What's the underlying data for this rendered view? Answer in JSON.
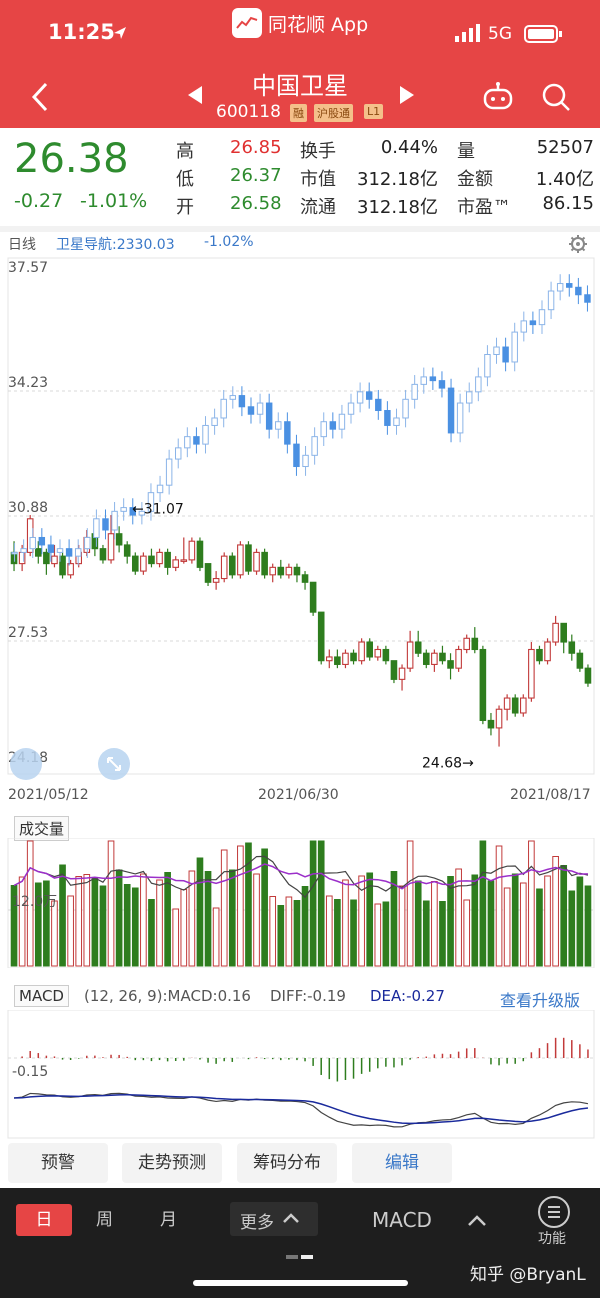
{
  "status_bar": {
    "time": "11:25",
    "app_label": "同花顺 App",
    "network": "5G"
  },
  "header": {
    "title": "中国卫星",
    "code": "600118",
    "badges": [
      "融",
      "沪股通",
      "L1"
    ]
  },
  "quote": {
    "price": "26.38",
    "change": "-0.27",
    "change_pct": "-1.01%",
    "stats": [
      {
        "label": "高",
        "value": "26.85",
        "color": "#e03030"
      },
      {
        "label": "换手",
        "value": "0.44%",
        "color": "#222"
      },
      {
        "label": "量",
        "value": "52507",
        "color": "#222"
      },
      {
        "label": "低",
        "value": "26.37",
        "color": "#2e8b2e"
      },
      {
        "label": "市值",
        "value": "312.18亿",
        "color": "#222"
      },
      {
        "label": "金额",
        "value": "1.40亿",
        "color": "#222"
      },
      {
        "label": "开",
        "value": "26.58",
        "color": "#2e8b2e"
      },
      {
        "label": "流通",
        "value": "312.18亿",
        "color": "#222"
      },
      {
        "label": "市盈™",
        "value": "86.15",
        "color": "#222"
      }
    ]
  },
  "chart_info": {
    "period": "日线",
    "index_label": "卫星导航:2330.03",
    "index_pct": "-1.02%"
  },
  "kline": {
    "y_ticks": [
      "37.57",
      "34.23",
      "30.88",
      "27.53",
      "24.18"
    ],
    "x_ticks": [
      "2021/05/12",
      "2021/06/30",
      "2021/08/17"
    ],
    "annotations": [
      "←31.07",
      "24.68→"
    ]
  },
  "volume": {
    "label": "成交量",
    "tick": "12.0万"
  },
  "macd": {
    "label": "MACD",
    "params": "(12, 26, 9):MACD:0.16",
    "diff": "DIFF:-0.19",
    "dea": "DEA:-0.27",
    "upgrade_link": "查看升级版",
    "tick": "-0.15"
  },
  "tool_buttons": [
    "预警",
    "走势预测",
    "筹码分布",
    "编辑"
  ],
  "bottom_nav": {
    "tabs": [
      "日",
      "周",
      "月",
      "更多"
    ],
    "indicator": "MACD",
    "func_label": "功能"
  },
  "watermark": "知乎 @BryanL",
  "colors": {
    "header": "#e64545",
    "up": "#c23a3a",
    "down": "#2e7d1e",
    "overlay": "#4a90e2"
  },
  "chart_data": {
    "type": "candlestick",
    "x_range": [
      "2021/05/12",
      "2021/08/17"
    ],
    "ylim": [
      24.18,
      37.57
    ],
    "series": [
      {
        "name": "中国卫星",
        "values": [
          [
            29.9,
            29.6,
            30.2,
            29.4
          ],
          [
            29.6,
            29.9,
            30.1,
            29.4
          ],
          [
            29.9,
            30.8,
            30.9,
            29.8
          ],
          [
            30.0,
            29.8,
            30.2,
            29.6
          ],
          [
            29.9,
            29.6,
            30.0,
            29.3
          ],
          [
            29.6,
            29.8,
            30.1,
            29.5
          ],
          [
            29.8,
            29.3,
            29.9,
            29.2
          ],
          [
            29.3,
            29.6,
            29.7,
            29.2
          ],
          [
            29.6,
            29.9,
            30.1,
            29.5
          ],
          [
            29.9,
            30.3,
            30.5,
            29.8
          ],
          [
            30.4,
            30.0,
            30.6,
            29.8
          ],
          [
            30.0,
            29.7,
            30.1,
            29.6
          ],
          [
            29.7,
            30.4,
            30.9,
            29.6
          ],
          [
            30.4,
            30.1,
            30.6,
            29.9
          ],
          [
            30.1,
            29.8,
            30.2,
            29.6
          ],
          [
            29.8,
            29.4,
            29.9,
            29.3
          ],
          [
            29.4,
            29.8,
            29.9,
            29.3
          ],
          [
            29.8,
            29.6,
            30.0,
            29.5
          ],
          [
            29.6,
            29.9,
            30.0,
            29.5
          ],
          [
            29.9,
            29.5,
            30.0,
            29.3
          ],
          [
            29.5,
            29.7,
            29.8,
            29.4
          ],
          [
            29.7,
            29.7,
            30.3,
            29.6
          ],
          [
            29.7,
            30.2,
            30.3,
            29.6
          ],
          [
            30.2,
            29.5,
            30.3,
            29.4
          ],
          [
            29.6,
            29.1,
            29.6,
            29.0
          ],
          [
            29.1,
            29.2,
            29.4,
            28.9
          ],
          [
            29.2,
            29.8,
            29.9,
            29.1
          ],
          [
            29.8,
            29.3,
            29.9,
            29.2
          ],
          [
            29.3,
            30.1,
            30.2,
            29.2
          ],
          [
            30.1,
            29.4,
            30.2,
            29.3
          ],
          [
            29.4,
            29.9,
            30.0,
            29.3
          ],
          [
            29.9,
            29.3,
            30.0,
            29.2
          ],
          [
            29.3,
            29.5,
            29.6,
            29.1
          ],
          [
            29.5,
            29.3,
            29.7,
            29.2
          ],
          [
            29.3,
            29.5,
            29.6,
            29.2
          ],
          [
            29.5,
            29.3,
            29.6,
            29.1
          ],
          [
            29.3,
            29.1,
            29.4,
            28.9
          ],
          [
            29.1,
            28.3,
            29.1,
            28.2
          ],
          [
            28.3,
            27.0,
            28.3,
            26.9
          ],
          [
            27.0,
            27.1,
            27.3,
            26.8
          ],
          [
            27.1,
            26.9,
            27.3,
            26.8
          ],
          [
            26.9,
            27.2,
            27.3,
            26.8
          ],
          [
            27.2,
            27.0,
            27.3,
            26.9
          ],
          [
            27.0,
            27.5,
            27.6,
            26.9
          ],
          [
            27.5,
            27.1,
            27.6,
            27.0
          ],
          [
            27.1,
            27.3,
            27.4,
            27.0
          ],
          [
            27.3,
            27.0,
            27.4,
            26.9
          ],
          [
            27.0,
            26.5,
            27.0,
            26.4
          ],
          [
            26.5,
            26.8,
            26.9,
            26.2
          ],
          [
            26.8,
            27.5,
            27.8,
            26.7
          ],
          [
            27.5,
            27.2,
            27.8,
            27.1
          ],
          [
            27.2,
            26.9,
            27.3,
            26.8
          ],
          [
            26.9,
            27.2,
            27.3,
            26.7
          ],
          [
            27.2,
            27.0,
            27.4,
            26.9
          ],
          [
            27.0,
            26.8,
            27.2,
            26.5
          ],
          [
            26.8,
            27.3,
            27.4,
            26.7
          ],
          [
            27.3,
            27.6,
            27.7,
            27.2
          ],
          [
            27.6,
            27.3,
            27.9,
            27.2
          ],
          [
            27.3,
            25.4,
            27.4,
            25.3
          ],
          [
            25.4,
            25.2,
            25.6,
            25.0
          ],
          [
            25.2,
            25.7,
            25.8,
            24.7
          ],
          [
            25.7,
            26.0,
            26.1,
            25.4
          ],
          [
            26.0,
            25.6,
            26.1,
            25.5
          ],
          [
            25.6,
            26.0,
            26.1,
            25.5
          ],
          [
            26.0,
            27.3,
            27.5,
            25.9
          ],
          [
            27.3,
            27.0,
            27.4,
            26.9
          ],
          [
            27.0,
            27.5,
            27.6,
            26.9
          ],
          [
            27.5,
            28.0,
            28.2,
            27.4
          ],
          [
            28.0,
            27.5,
            28.0,
            27.2
          ],
          [
            27.5,
            27.2,
            27.7,
            27.0
          ],
          [
            27.2,
            26.8,
            27.3,
            26.7
          ],
          [
            26.8,
            26.4,
            26.9,
            26.3
          ]
        ]
      },
      {
        "name": "卫星导航",
        "values": [
          29.9,
          30.0,
          30.3,
          30.1,
          29.9,
          30.0,
          29.8,
          30.0,
          30.3,
          30.8,
          30.5,
          31.0,
          31.1,
          30.9,
          31.0,
          31.5,
          31.7,
          32.4,
          32.7,
          33.0,
          32.8,
          33.3,
          33.5,
          34.0,
          34.1,
          33.8,
          33.6,
          33.9,
          33.2,
          33.4,
          32.8,
          32.2,
          32.5,
          33.0,
          33.4,
          33.2,
          33.6,
          33.9,
          34.2,
          34.0,
          33.7,
          33.3,
          33.5,
          34.0,
          34.4,
          34.6,
          34.5,
          34.3,
          33.1,
          33.9,
          34.2,
          34.6,
          35.2,
          35.4,
          35.0,
          35.8,
          36.1,
          36.0,
          36.4,
          36.9,
          37.1,
          37.0,
          36.8,
          36.6
        ]
      }
    ]
  }
}
